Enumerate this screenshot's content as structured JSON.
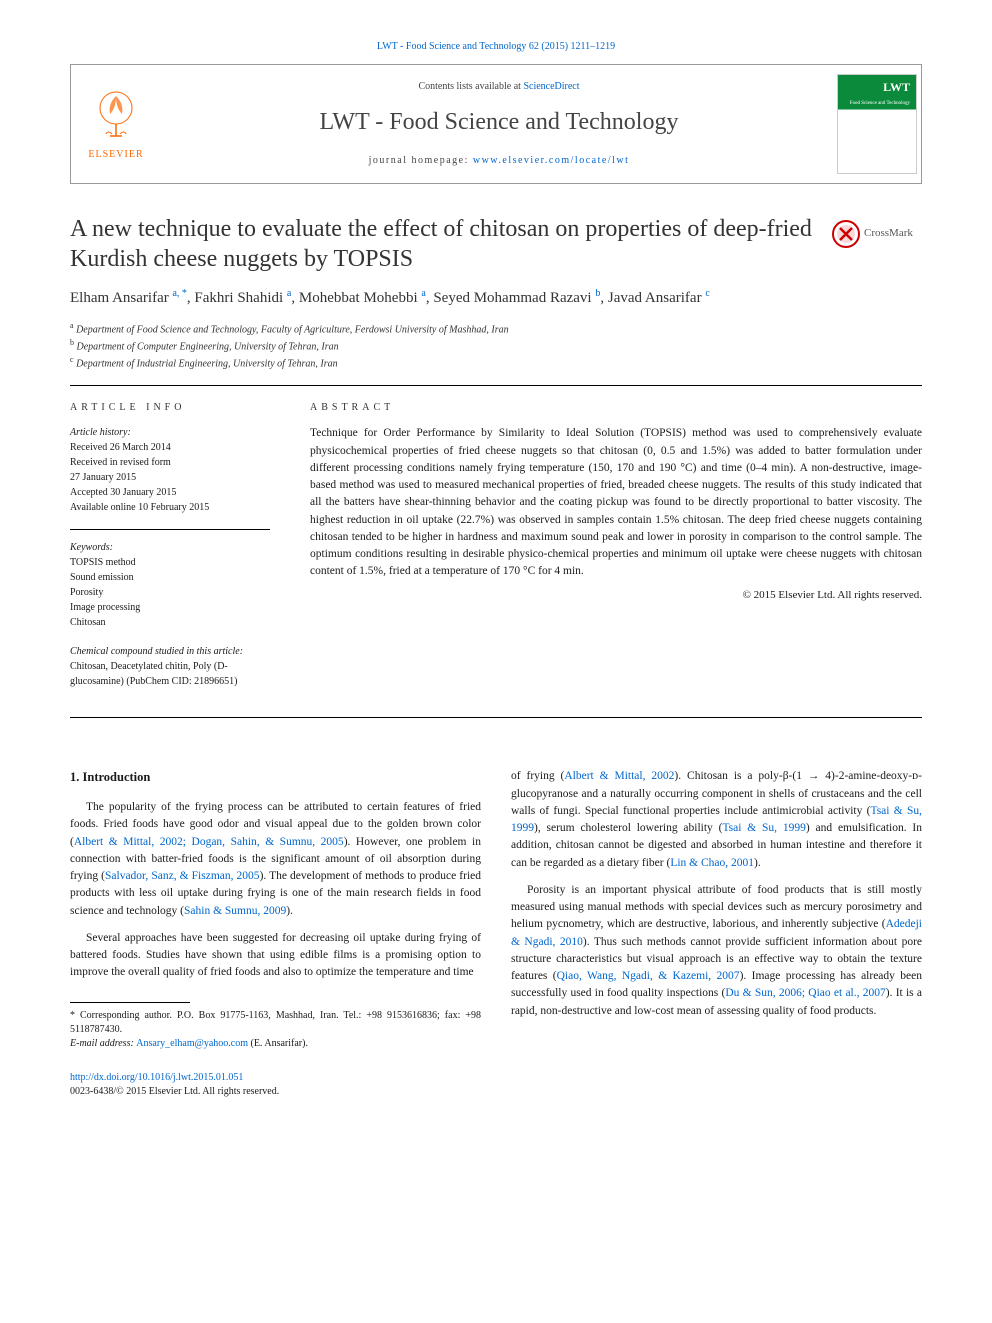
{
  "top_link": "LWT - Food Science and Technology 62 (2015) 1211–1219",
  "header": {
    "publisher": "ELSEVIER",
    "contents_prefix": "Contents lists available at ",
    "contents_link": "ScienceDirect",
    "journal_name": "LWT - Food Science and Technology",
    "homepage_prefix": "journal homepage: ",
    "homepage_url": "www.elsevier.com/locate/lwt",
    "cover_lwt": "LWT",
    "cover_sub": "Food Science and Technology"
  },
  "crossmark": "CrossMark",
  "title": "A new technique to evaluate the effect of chitosan on properties of deep-fried Kurdish cheese nuggets by TOPSIS",
  "authors_html": "Elham Ansarifar <span class='sup'>a, *</span>, Fakhri Shahidi <span class='sup'>a</span>, Mohebbat Mohebbi <span class='sup'>a</span>, Seyed Mohammad Razavi <span class='sup'>b</span>, Javad Ansarifar <span class='sup'>c</span>",
  "affiliations": [
    {
      "sup": "a",
      "text": "Department of Food Science and Technology, Faculty of Agriculture, Ferdowsi University of Mashhad, Iran"
    },
    {
      "sup": "b",
      "text": "Department of Computer Engineering, University of Tehran, Iran"
    },
    {
      "sup": "c",
      "text": "Department of Industrial Engineering, University of Tehran, Iran"
    }
  ],
  "info": {
    "head": "ARTICLE INFO",
    "history_label": "Article history:",
    "history": [
      "Received 26 March 2014",
      "Received in revised form",
      "27 January 2015",
      "Accepted 30 January 2015",
      "Available online 10 February 2015"
    ],
    "keywords_label": "Keywords:",
    "keywords": [
      "TOPSIS method",
      "Sound emission",
      "Porosity",
      "Image processing",
      "Chitosan"
    ],
    "compound_label": "Chemical compound studied in this article:",
    "compound": "Chitosan, Deacetylated chitin, Poly (D-glucosamine) (PubChem CID: 21896651)"
  },
  "abstract": {
    "head": "ABSTRACT",
    "text": "Technique for Order Performance by Similarity to Ideal Solution (TOPSIS) method was used to comprehensively evaluate physicochemical properties of fried cheese nuggets so that chitosan (0, 0.5 and 1.5%) was added to batter formulation under different processing conditions namely frying temperature (150, 170 and 190 °C) and time (0–4 min). A non-destructive, image-based method was used to measured mechanical properties of fried, breaded cheese nuggets. The results of this study indicated that all the batters have shear-thinning behavior and the coating pickup was found to be directly proportional to batter viscosity. The highest reduction in oil uptake (22.7%) was observed in samples contain 1.5% chitosan. The deep fried cheese nuggets containing chitosan tended to be higher in hardness and maximum sound peak and lower in porosity in comparison to the control sample. The optimum conditions resulting in desirable physico-chemical properties and minimum oil uptake were cheese nuggets with chitosan content of 1.5%, fried at a temperature of 170 °C for 4 min.",
    "copyright": "© 2015 Elsevier Ltd. All rights reserved."
  },
  "section1": {
    "heading": "1. Introduction",
    "p1_pre": "The popularity of the frying process can be attributed to certain features of fried foods. Fried foods have good odor and visual appeal due to the golden brown color (",
    "p1_ref1": "Albert & Mittal, 2002; Dogan, Sahin, & Sumnu, 2005",
    "p1_mid1": "). However, one problem in connection with batter-fried foods is the significant amount of oil absorption during frying (",
    "p1_ref2": "Salvador, Sanz, & Fiszman, 2005",
    "p1_mid2": "). The development of methods to produce fried products with less oil uptake during frying is one of the main research fields in food science and technology (",
    "p1_ref3": "Sahin & Sumnu, 2009",
    "p1_post": ").",
    "p2": "Several approaches have been suggested for decreasing oil uptake during frying of battered foods. Studies have shown that using edible films is a promising option to improve the overall quality of fried foods and also to optimize the temperature and time",
    "p3_pre": "of frying (",
    "p3_ref1": "Albert & Mittal, 2002",
    "p3_mid1": "). Chitosan is a poly-β-(1 → 4)-2-amine-deoxy-ᴅ-glucopyranose and a naturally occurring component in shells of crustaceans and the cell walls of fungi. Special functional properties include antimicrobial activity (",
    "p3_ref2": "Tsai & Su, 1999",
    "p3_mid2": "), serum cholesterol lowering ability (",
    "p3_ref3": "Tsai & Su, 1999",
    "p3_mid3": ") and emulsification. In addition, chitosan cannot be digested and absorbed in human intestine and therefore it can be regarded as a dietary fiber (",
    "p3_ref4": "Lin & Chao, 2001",
    "p3_post": ").",
    "p4_pre": "Porosity is an important physical attribute of food products that is still mostly measured using manual methods with special devices such as mercury porosimetry and helium pycnometry, which are destructive, laborious, and inherently subjective (",
    "p4_ref1": "Adedeji & Ngadi, 2010",
    "p4_mid1": "). Thus such methods cannot provide sufficient information about pore structure characteristics but visual approach is an effective way to obtain the texture features (",
    "p4_ref2": "Qiao, Wang, Ngadi, & Kazemi, 2007",
    "p4_mid2": "). Image processing has already been successfully used in food quality inspections (",
    "p4_ref3": "Du & Sun, 2006; Qiao et al., 2007",
    "p4_post": "). It is a rapid, non-destructive and low-cost mean of assessing quality of food products."
  },
  "footnotes": {
    "corr": "* Corresponding author. P.O. Box 91775-1163, Mashhad, Iran. Tel.: +98 9153616836; fax: +98 5118787430.",
    "email_label": "E-mail address: ",
    "email": "Ansary_elham@yahoo.com",
    "email_suffix": " (E. Ansarifar)."
  },
  "footer": {
    "doi": "http://dx.doi.org/10.1016/j.lwt.2015.01.051",
    "issn": "0023-6438/© 2015 Elsevier Ltd. All rights reserved."
  },
  "colors": {
    "link": "#0066cc",
    "elsevier_orange": "#ff6600",
    "cover_green": "#0a8a3a",
    "text": "#1a1a1a"
  }
}
